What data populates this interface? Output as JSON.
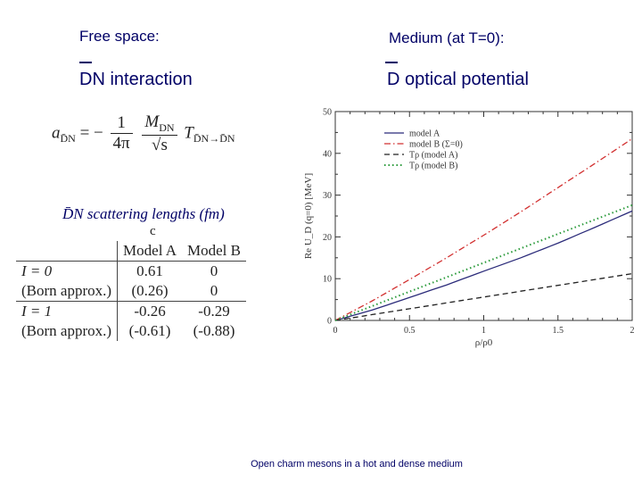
{
  "left_panel": {
    "header": "Free space:",
    "title": "DN interaction",
    "formula": {
      "lhs": "a",
      "lhs_sub": "D̄N",
      "eq": "= −",
      "frac1_num": "1",
      "frac1_den": "4π",
      "frac2_num": "M",
      "frac2_num_sub": "DN",
      "frac2_den": "√s",
      "rhs": "T",
      "rhs_sub": "D̄N→D̄N"
    },
    "table_caption": "D̄N scattering lengths (fm)",
    "table_stray": "c",
    "table": {
      "headers": [
        "",
        "Model A",
        "Model B"
      ],
      "rows": [
        [
          "I = 0",
          "0.61",
          "0"
        ],
        [
          "(Born approx.)",
          "(0.26)",
          "0"
        ],
        [
          "I = 1",
          "-0.26",
          "-0.29"
        ],
        [
          "(Born approx.)",
          "(-0.61)",
          "(-0.88)"
        ]
      ]
    }
  },
  "right_panel": {
    "header": "Medium (at T=0):",
    "title": "D optical potential"
  },
  "chart_data": {
    "type": "line",
    "xlabel": "ρ/ρ0",
    "ylabel": "Re U_D (q=0) [MeV]",
    "xlim": [
      0,
      2
    ],
    "ylim": [
      0,
      50
    ],
    "x_ticks": [
      "0",
      "0.5",
      "1",
      "1.5",
      "2"
    ],
    "y_ticks": [
      "0",
      "10",
      "20",
      "30",
      "40",
      "50"
    ],
    "legend_position": "top-left",
    "series": [
      {
        "name": "model A",
        "style": "solid",
        "color": "#2b2b7a",
        "x": [
          0,
          0.25,
          0.5,
          0.75,
          1.0,
          1.25,
          1.5,
          1.75,
          2.0
        ],
        "y": [
          0,
          2.5,
          5.5,
          8.5,
          11.8,
          15.0,
          18.5,
          22.3,
          26.2
        ]
      },
      {
        "name": "model B (Σ=0)",
        "style": "dashdot",
        "color": "#d23030",
        "x": [
          0,
          0.25,
          0.5,
          0.75,
          1.0,
          1.25,
          1.5,
          1.75,
          2.0
        ],
        "y": [
          0,
          4.7,
          9.8,
          15.0,
          20.4,
          26.0,
          31.8,
          37.6,
          43.5
        ]
      },
      {
        "name": "Tρ (model A)",
        "style": "dashed",
        "color": "#222222",
        "x": [
          0,
          0.5,
          1.0,
          1.5,
          2.0
        ],
        "y": [
          0,
          2.8,
          5.6,
          8.4,
          11.2
        ]
      },
      {
        "name": "Tρ (model B)",
        "style": "dotted",
        "color": "#2a9a3a",
        "x": [
          0,
          0.5,
          1.0,
          1.5,
          2.0
        ],
        "y": [
          0,
          6.9,
          13.8,
          20.7,
          27.6
        ]
      }
    ]
  },
  "footer": "Open charm mesons in a hot and dense medium"
}
